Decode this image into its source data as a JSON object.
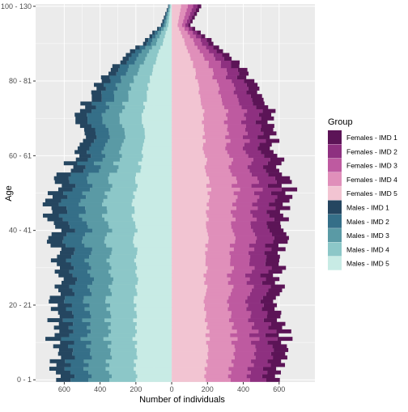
{
  "chart_data": {
    "type": "bar",
    "subtype": "stacked-population-pyramid",
    "orientation": "horizontal",
    "title": "",
    "xlabel": "Number of individuals",
    "ylabel": "Age",
    "x_tick_labels": [
      "600",
      "400",
      "200",
      "0",
      "200",
      "400",
      "600"
    ],
    "x_tick_values": [
      -600,
      -400,
      -200,
      0,
      200,
      400,
      600
    ],
    "xlim": [
      -760,
      800
    ],
    "y_tick_labels": [
      "0 - 1",
      "20 - 21",
      "40 - 41",
      "60 - 61",
      "80 - 81",
      "100 - 130"
    ],
    "y_tick_positions": [
      0,
      20,
      40,
      60,
      80,
      100
    ],
    "ylim": [
      -0.6,
      100.6
    ],
    "age_groups_count": 101,
    "grid": true,
    "legend": {
      "title": "Group",
      "position": "right",
      "entries": [
        "Females - IMD 1",
        "Females - IMD 2",
        "Females - IMD 3",
        "Females - IMD 4",
        "Females - IMD 5",
        "Males - IMD 1",
        "Males - IMD 2",
        "Males - IMD 3",
        "Males - IMD 4",
        "Males - IMD 5"
      ]
    },
    "colors": {
      "Females - IMD 1": "#5c1457",
      "Females - IMD 2": "#8e3080",
      "Females - IMD 3": "#be5aa0",
      "Females - IMD 4": "#e08fba",
      "Females - IMD 5": "#f2c4d2",
      "Males - IMD 1": "#254660",
      "Males - IMD 2": "#356f88",
      "Males - IMD 3": "#5a9aa5",
      "Males - IMD 4": "#8cc7c8",
      "Males - IMD 5": "#c8ebe5"
    },
    "shape_anchors": {
      "age": [
        0,
        5,
        10,
        15,
        20,
        25,
        30,
        35,
        40,
        45,
        50,
        55,
        60,
        65,
        70,
        75,
        80,
        85,
        90,
        95,
        100
      ],
      "females_total": [
        605,
        630,
        640,
        620,
        600,
        610,
        600,
        615,
        620,
        650,
        670,
        640,
        590,
        575,
        575,
        545,
        460,
        360,
        235,
        105,
        165
      ],
      "males_total": [
        640,
        655,
        665,
        650,
        650,
        640,
        640,
        650,
        660,
        680,
        665,
        615,
        550,
        515,
        520,
        475,
        395,
        290,
        170,
        60,
        20
      ]
    },
    "imd_split": {
      "females": [
        0.125,
        0.15,
        0.18,
        0.23,
        0.315
      ],
      "males": [
        0.125,
        0.155,
        0.18,
        0.23,
        0.31
      ]
    }
  }
}
